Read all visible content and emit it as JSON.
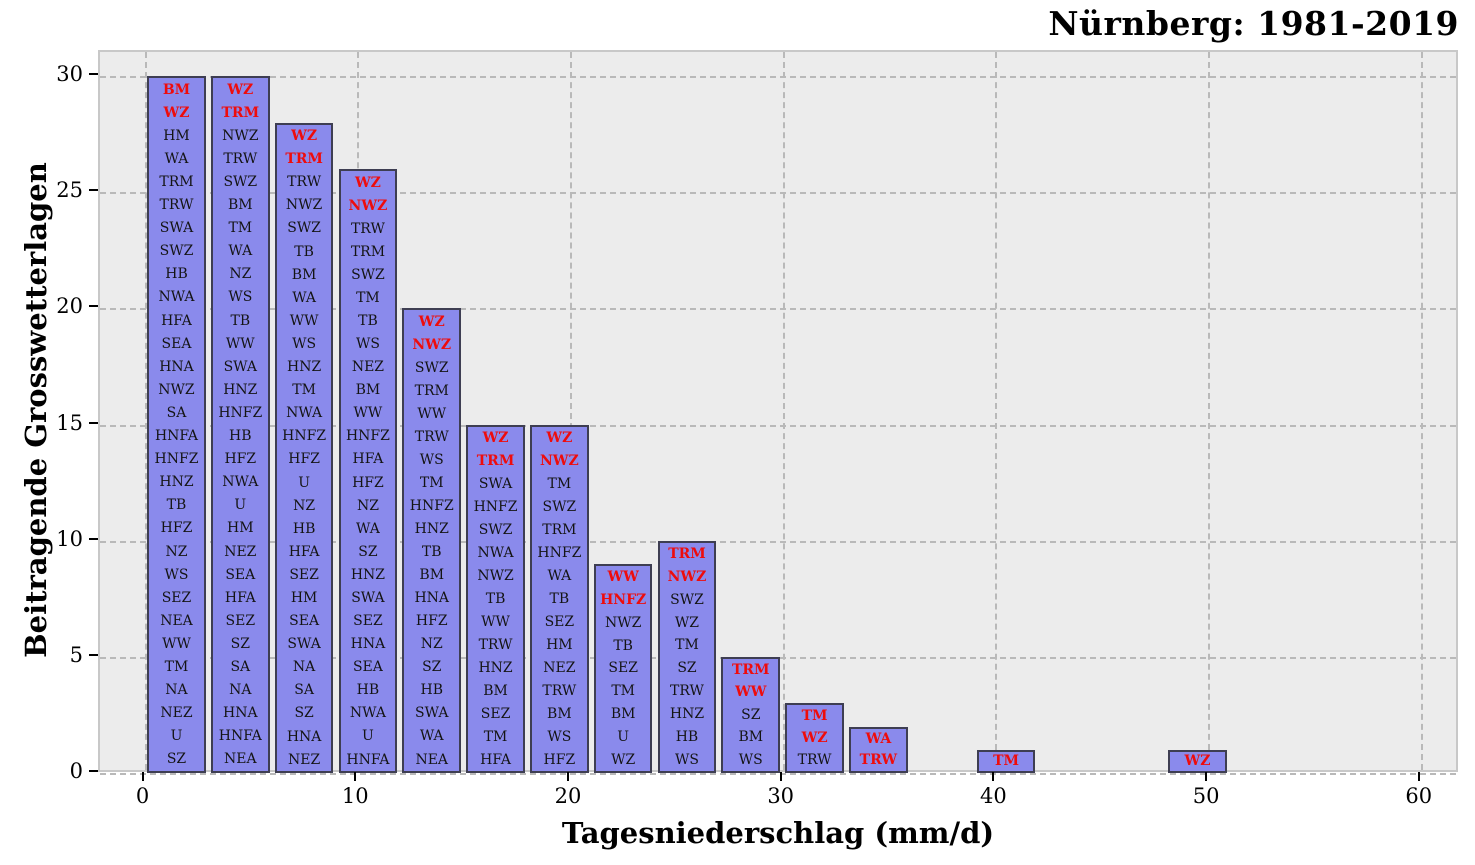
{
  "chart_data": {
    "type": "bar",
    "title": "Nürnberg: 1981-2019",
    "xlabel": "Tagesniederschlag (mm/d)",
    "ylabel": "Beitragende Grosswetterlagen",
    "xticks": [
      0,
      10,
      20,
      30,
      40,
      50,
      60
    ],
    "yticks": [
      0,
      5,
      10,
      15,
      20,
      25,
      30
    ],
    "xlim": [
      -2.1,
      61.8
    ],
    "ylim": [
      0,
      31
    ],
    "grid": "dashed, both axes",
    "legend": "none",
    "bin_width_mm": 3,
    "colors": {
      "bar_fill": "#8a8aec",
      "bar_edge": "#3e3e52",
      "label_highlight": "#ee0c0c",
      "label_normal": "#141414",
      "plot_background": "#ececec",
      "gridline": "#b9b9b9"
    },
    "bars": [
      {
        "x_start": 0,
        "x_end": 3,
        "count": 30,
        "red_labels": [
          "BM",
          "WZ"
        ],
        "black_labels": [
          "HM",
          "WA",
          "TRM",
          "TRW",
          "SWA",
          "SWZ",
          "HB",
          "NWA",
          "HFA",
          "SEA",
          "HNA",
          "NWZ",
          "SA",
          "HNFA",
          "HNFZ",
          "HNZ",
          "TB",
          "HFZ",
          "NZ",
          "WS",
          "SEZ",
          "NEA",
          "WW",
          "TM",
          "NA",
          "NEZ",
          "U",
          "SZ"
        ]
      },
      {
        "x_start": 3,
        "x_end": 6,
        "count": 30,
        "red_labels": [
          "WZ",
          "TRM"
        ],
        "black_labels": [
          "NWZ",
          "TRW",
          "SWZ",
          "BM",
          "TM",
          "WA",
          "NZ",
          "WS",
          "TB",
          "WW",
          "SWA",
          "HNZ",
          "HNFZ",
          "HB",
          "HFZ",
          "NWA",
          "U",
          "HM",
          "NEZ",
          "SEA",
          "HFA",
          "SEZ",
          "SZ",
          "SA",
          "NA",
          "HNA",
          "HNFA",
          "NEA"
        ]
      },
      {
        "x_start": 6,
        "x_end": 9,
        "count": 28,
        "red_labels": [
          "WZ",
          "TRM"
        ],
        "black_labels": [
          "TRW",
          "NWZ",
          "SWZ",
          "TB",
          "BM",
          "WA",
          "WW",
          "WS",
          "HNZ",
          "TM",
          "NWA",
          "HNFZ",
          "HFZ",
          "U",
          "NZ",
          "HB",
          "HFA",
          "SEZ",
          "HM",
          "SEA",
          "SWA",
          "NA",
          "SA",
          "SZ",
          "HNA",
          "NEZ"
        ]
      },
      {
        "x_start": 9,
        "x_end": 12,
        "count": 26,
        "red_labels": [
          "WZ",
          "NWZ"
        ],
        "black_labels": [
          "TRW",
          "TRM",
          "SWZ",
          "TM",
          "TB",
          "WS",
          "NEZ",
          "BM",
          "WW",
          "HNFZ",
          "HFA",
          "HFZ",
          "NZ",
          "WA",
          "SZ",
          "HNZ",
          "SWA",
          "SEZ",
          "HNA",
          "SEA",
          "HB",
          "NWA",
          "U",
          "HNFA"
        ]
      },
      {
        "x_start": 12,
        "x_end": 15,
        "count": 20,
        "red_labels": [
          "WZ",
          "NWZ"
        ],
        "black_labels": [
          "SWZ",
          "TRM",
          "WW",
          "TRW",
          "WS",
          "TM",
          "HNFZ",
          "HNZ",
          "TB",
          "BM",
          "HNA",
          "HFZ",
          "NZ",
          "SZ",
          "HB",
          "SWA",
          "WA",
          "NEA"
        ]
      },
      {
        "x_start": 15,
        "x_end": 18,
        "count": 15,
        "red_labels": [
          "WZ",
          "TRM"
        ],
        "black_labels": [
          "SWA",
          "HNFZ",
          "SWZ",
          "NWA",
          "NWZ",
          "TB",
          "WW",
          "TRW",
          "HNZ",
          "BM",
          "SEZ",
          "TM",
          "HFA"
        ]
      },
      {
        "x_start": 18,
        "x_end": 21,
        "count": 15,
        "red_labels": [
          "WZ",
          "NWZ"
        ],
        "black_labels": [
          "TM",
          "SWZ",
          "TRM",
          "HNFZ",
          "WA",
          "TB",
          "SEZ",
          "HM",
          "NEZ",
          "TRW",
          "BM",
          "WS",
          "HFZ"
        ]
      },
      {
        "x_start": 21,
        "x_end": 24,
        "count": 9,
        "red_labels": [
          "WW",
          "HNFZ"
        ],
        "black_labels": [
          "NWZ",
          "TB",
          "SEZ",
          "TM",
          "BM",
          "U",
          "WZ"
        ]
      },
      {
        "x_start": 24,
        "x_end": 27,
        "count": 10,
        "red_labels": [
          "TRM",
          "NWZ"
        ],
        "black_labels": [
          "SWZ",
          "WZ",
          "TM",
          "SZ",
          "TRW",
          "HNZ",
          "HB",
          "WS"
        ]
      },
      {
        "x_start": 27,
        "x_end": 30,
        "count": 5,
        "red_labels": [
          "TRM",
          "WW"
        ],
        "black_labels": [
          "SZ",
          "BM",
          "WS"
        ]
      },
      {
        "x_start": 30,
        "x_end": 33,
        "count": 3,
        "red_labels": [
          "TM",
          "WZ"
        ],
        "black_labels": [
          "TRW"
        ]
      },
      {
        "x_start": 33,
        "x_end": 36,
        "count": 2,
        "red_labels": [
          "WA",
          "TRW"
        ],
        "black_labels": []
      },
      {
        "x_start": 39,
        "x_end": 42,
        "count": 1,
        "red_labels": [
          "TM"
        ],
        "black_labels": []
      },
      {
        "x_start": 48,
        "x_end": 51,
        "count": 1,
        "red_labels": [
          "WZ"
        ],
        "black_labels": []
      }
    ]
  }
}
